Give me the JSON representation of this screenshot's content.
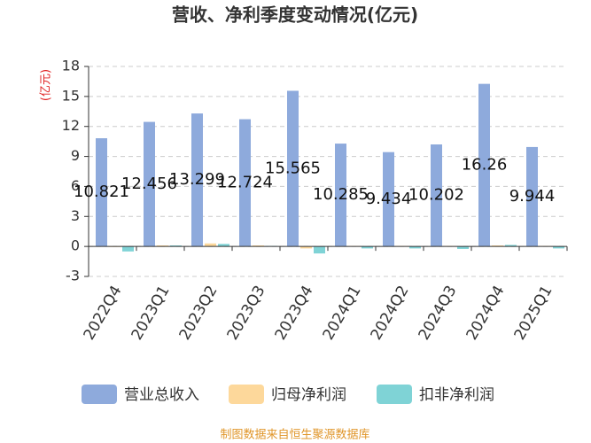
{
  "chart_data": {
    "type": "bar",
    "title": "营收、净利季度变动情况(亿元)",
    "y_label": "(亿元)",
    "source": "制图数据来自恒生聚源数据库",
    "categories": [
      "2022Q4",
      "2023Q1",
      "2023Q2",
      "2023Q3",
      "2023Q4",
      "2024Q1",
      "2024Q2",
      "2024Q3",
      "2024Q4",
      "2025Q1"
    ],
    "series": [
      {
        "name": "营业总收入",
        "color": "#8eaadc",
        "values": [
          10.821,
          12.456,
          13.299,
          12.724,
          15.565,
          10.285,
          9.434,
          10.202,
          16.26,
          9.944
        ]
      },
      {
        "name": "归母净利润",
        "color": "#fdd89b",
        "values": [
          -0.05,
          0.1,
          0.3,
          0.1,
          -0.2,
          0.05,
          0.05,
          0.05,
          0.1,
          0.05
        ]
      },
      {
        "name": "扣非净利润",
        "color": "#7fd3d6",
        "values": [
          -0.5,
          0.1,
          0.25,
          0.05,
          -0.7,
          -0.2,
          -0.2,
          -0.25,
          0.15,
          -0.2
        ]
      }
    ],
    "ylim": [
      -3,
      18
    ],
    "yticks": [
      -3,
      0,
      3,
      6,
      9,
      12,
      15,
      18
    ],
    "grid": true,
    "legend": "bottom"
  }
}
